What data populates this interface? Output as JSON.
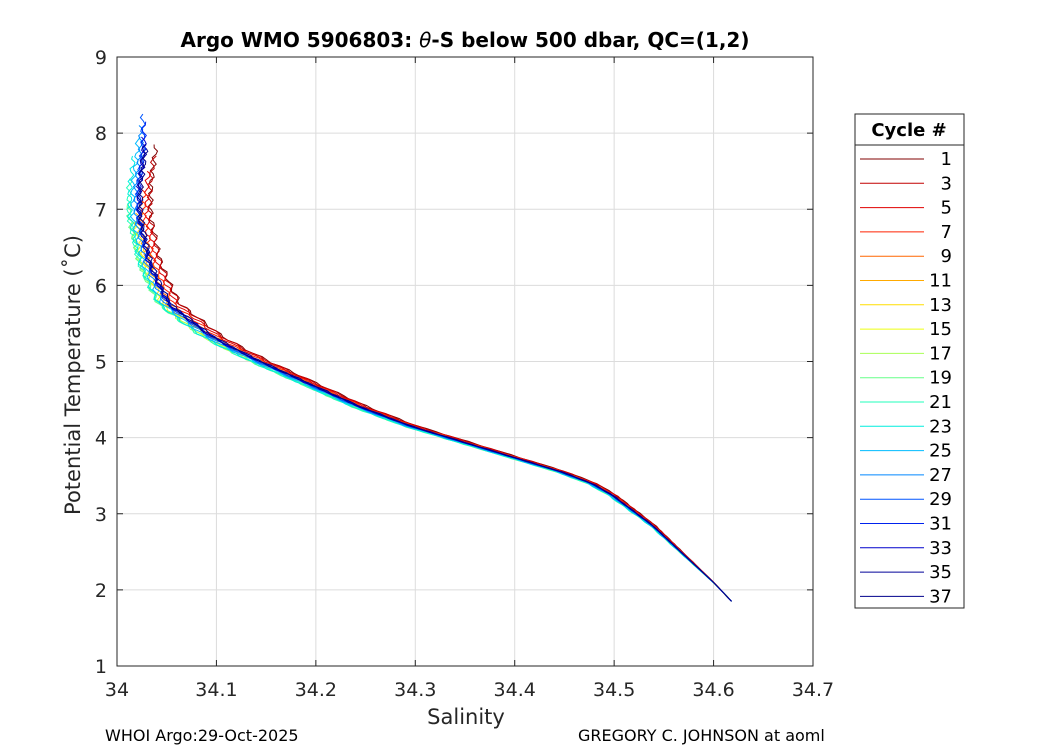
{
  "chart_data": {
    "type": "line",
    "title_parts": [
      "Argo WMO 5906803: ",
      "θ",
      "-S below 500 dbar,  QC=(1,2)"
    ],
    "xlabel": "Salinity",
    "ylabel": "Potential Temperature (˚C)",
    "xlim": [
      34.0,
      34.7
    ],
    "ylim": [
      1,
      9
    ],
    "xticks": [
      "34",
      "34.1",
      "34.2",
      "34.3",
      "34.4",
      "34.5",
      "34.6",
      "34.7"
    ],
    "yticks": [
      "1",
      "2",
      "3",
      "4",
      "5",
      "6",
      "7",
      "8",
      "9"
    ],
    "grid": true,
    "legend": {
      "title": "Cycle #",
      "position": "outside-right",
      "entries": [
        {
          "label": "1",
          "color": "#800000"
        },
        {
          "label": "3",
          "color": "#c20000"
        },
        {
          "label": "5",
          "color": "#e00000"
        },
        {
          "label": "7",
          "color": "#ff2200"
        },
        {
          "label": "9",
          "color": "#ff6600"
        },
        {
          "label": "11",
          "color": "#ffaa00"
        },
        {
          "label": "13",
          "color": "#ffdd00"
        },
        {
          "label": "15",
          "color": "#eeff11"
        },
        {
          "label": "17",
          "color": "#aaff55"
        },
        {
          "label": "19",
          "color": "#66ff88"
        },
        {
          "label": "21",
          "color": "#22ffbb"
        },
        {
          "label": "23",
          "color": "#00eedd"
        },
        {
          "label": "25",
          "color": "#00bbff"
        },
        {
          "label": "27",
          "color": "#0088ff"
        },
        {
          "label": "29",
          "color": "#0055ff"
        },
        {
          "label": "31",
          "color": "#0022ee"
        },
        {
          "label": "33",
          "color": "#0000cc"
        },
        {
          "label": "35",
          "color": "#000099"
        },
        {
          "label": "37",
          "color": "#00008b"
        }
      ]
    },
    "reference_profile": {
      "salinity": [
        34.618,
        34.6,
        34.58,
        34.56,
        34.54,
        34.52,
        34.5,
        34.48,
        34.45,
        34.4,
        34.35,
        34.3,
        34.25,
        34.2,
        34.15,
        34.12,
        34.1,
        34.08,
        34.06,
        34.05,
        34.04,
        34.035,
        34.03,
        34.03,
        34.035
      ],
      "theta": [
        1.85,
        2.1,
        2.35,
        2.6,
        2.85,
        3.05,
        3.25,
        3.4,
        3.55,
        3.75,
        3.95,
        4.15,
        4.4,
        4.7,
        5.0,
        5.2,
        5.35,
        5.55,
        5.75,
        6.0,
        6.3,
        6.6,
        6.9,
        7.3,
        7.8
      ]
    },
    "series_variation": {
      "cycles": [
        1,
        3,
        5,
        7,
        9,
        11,
        13,
        15,
        17,
        19,
        21,
        23,
        25,
        27,
        29,
        31,
        33,
        35,
        37
      ],
      "salinity_offset_max": [
        0.004,
        0.003,
        0.0,
        -0.003,
        -0.006,
        -0.009,
        -0.012,
        -0.015,
        -0.017,
        -0.018,
        -0.018,
        -0.017,
        -0.014,
        -0.011,
        -0.009,
        -0.008,
        -0.008,
        -0.007,
        -0.006
      ],
      "top_theta": [
        7.85,
        7.7,
        7.5,
        7.3,
        7.1,
        6.95,
        6.85,
        6.8,
        6.9,
        7.1,
        7.4,
        7.7,
        7.95,
        8.1,
        8.25,
        8.15,
        7.95,
        7.85,
        7.8
      ]
    }
  },
  "footer": {
    "left": "WHOI Argo:29-Oct-2025",
    "right": "GREGORY C. JOHNSON at aoml"
  }
}
